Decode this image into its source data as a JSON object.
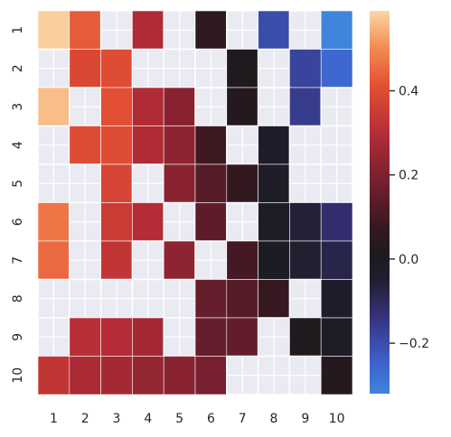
{
  "chart_data": {
    "type": "heatmap",
    "rows": [
      "1",
      "2",
      "3",
      "4",
      "5",
      "6",
      "7",
      "8",
      "9",
      "10"
    ],
    "cols": [
      "1",
      "2",
      "3",
      "4",
      "5",
      "6",
      "7",
      "8",
      "9",
      "10"
    ],
    "missing_color": "#eaeaf2",
    "colormap": "icefire",
    "vmin": -0.32,
    "vmax": 0.59,
    "values": [
      [
        0.58,
        0.43,
        null,
        0.29,
        null,
        0.05,
        null,
        -0.2,
        null,
        -0.32
      ],
      [
        null,
        0.39,
        0.4,
        null,
        null,
        null,
        0.02,
        null,
        -0.18,
        -0.26
      ],
      [
        0.56,
        null,
        0.41,
        0.29,
        0.22,
        null,
        0.03,
        null,
        -0.16,
        null
      ],
      [
        null,
        0.4,
        0.4,
        0.29,
        0.23,
        0.09,
        null,
        -0.04,
        null,
        null
      ],
      [
        null,
        null,
        0.38,
        null,
        0.22,
        0.13,
        0.06,
        -0.03,
        null,
        null
      ],
      [
        0.47,
        null,
        0.35,
        0.3,
        null,
        0.14,
        null,
        -0.02,
        -0.06,
        -0.12
      ],
      [
        0.45,
        null,
        0.33,
        null,
        0.23,
        null,
        0.1,
        -0.01,
        -0.05,
        -0.08
      ],
      [
        null,
        null,
        null,
        null,
        null,
        0.16,
        0.13,
        0.07,
        null,
        -0.04
      ],
      [
        null,
        0.31,
        0.3,
        0.27,
        null,
        0.16,
        0.15,
        null,
        0.02,
        -0.02
      ],
      [
        0.33,
        0.28,
        0.27,
        0.24,
        0.22,
        0.19,
        null,
        null,
        null,
        0.03
      ]
    ],
    "colorbar": {
      "ticks": [
        0.4,
        0.2,
        0.0,
        -0.2
      ],
      "tick_labels": [
        "0.4",
        "0.2",
        "0.0",
        "−0.2"
      ]
    }
  }
}
